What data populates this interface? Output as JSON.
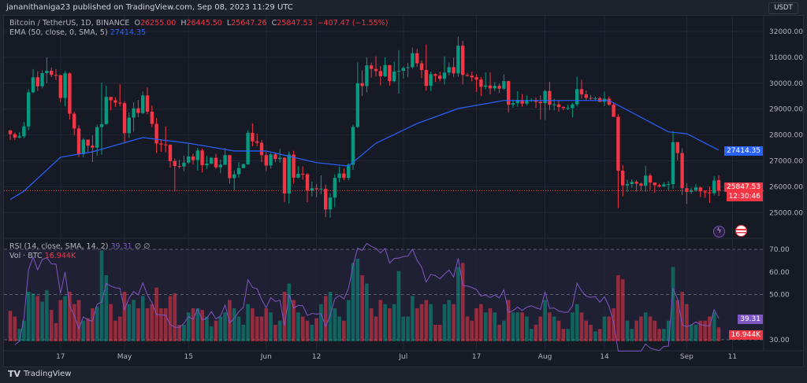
{
  "published": "jananithaniga23 published on TradingView.com, Sep 08, 2023 11:29 UTC",
  "legend": {
    "symbol": "Bitcoin / TetherUS, 1D, BINANCE",
    "o_label": "O",
    "o": "26255.00",
    "h_label": "H",
    "h": "26445.50",
    "l_label": "L",
    "l": "25647.26",
    "c_label": "C",
    "c": "25847.53",
    "change": "−407.47 (−1.55%)",
    "ema_label": "EMA (50, close, 0, SMA, 5)",
    "ema_value": "27414.35",
    "rsi_label": "RSI (14, close, SMA, 14, 2)",
    "rsi_value": "39.31",
    "rsi_extra": "∅ ∅",
    "vol_label": "Vol · BTC",
    "vol_value": "16.944K"
  },
  "currency_button": "USDT",
  "price_axis": [
    "32000.00",
    "31000.00",
    "30000.00",
    "29000.00",
    "28000.00",
    "27000.00",
    "26000.00",
    "25000.00"
  ],
  "rsi_axis": [
    "70.00",
    "60.00",
    "50.00",
    "30.00"
  ],
  "tags": {
    "ema": "27414.35",
    "last_price": "25847.53",
    "countdown": "12:30:46",
    "rsi": "39.31",
    "volume": "16.944K"
  },
  "footer_logo": "TradingView",
  "icons": [
    "lightning-icon",
    "us-flag-icon"
  ],
  "colors": {
    "up": "#089981",
    "down": "#f23645",
    "ema": "#2962ff",
    "rsi": "#7e57c2",
    "background": "#161a25"
  },
  "chart_data": {
    "type": "candlestick",
    "symbol": "BTCUSDT",
    "interval": "1D",
    "x_start": "2023-04-06",
    "first_open": 28170,
    "ylim": [
      24700,
      32200
    ],
    "grid": true,
    "x_ticks": [
      {
        "label": "17",
        "date": "2023-04-17"
      },
      {
        "label": "May",
        "date": "2023-05-01"
      },
      {
        "label": "15",
        "date": "2023-05-15"
      },
      {
        "label": "Jun",
        "date": "2023-06-01"
      },
      {
        "label": "12",
        "date": "2023-06-12"
      },
      {
        "label": "Jul",
        "date": "2023-07-01"
      },
      {
        "label": "17",
        "date": "2023-07-17"
      },
      {
        "label": "Aug",
        "date": "2023-08-01"
      },
      {
        "label": "14",
        "date": "2023-08-14"
      },
      {
        "label": "Sep",
        "date": "2023-09-01"
      },
      {
        "label": "11",
        "date": "2023-09-11"
      }
    ],
    "close": [
      28030,
      27900,
      27950,
      28330,
      29650,
      30230,
      29880,
      30390,
      30480,
      30320,
      30310,
      29430,
      30380,
      28820,
      28250,
      27260,
      27820,
      27590,
      27510,
      28300,
      28420,
      29470,
      29340,
      29250,
      29230,
      28070,
      28670,
      29030,
      28850,
      29530,
      28900,
      28430,
      27670,
      27630,
      27620,
      26990,
      26800,
      26780,
      26930,
      27170,
      27030,
      27400,
      26830,
      26890,
      27120,
      26750,
      26850,
      27220,
      26330,
      26480,
      26720,
      26870,
      28080,
      27750,
      27700,
      27220,
      26820,
      27250,
      27070,
      27120,
      25740,
      27240,
      26350,
      26500,
      26480,
      25850,
      25940,
      25900,
      25920,
      25120,
      25580,
      26340,
      26510,
      26340,
      26850,
      28310,
      30000,
      29890,
      30690,
      30550,
      30470,
      30270,
      30700,
      30080,
      30450,
      30480,
      30590,
      30620,
      31160,
      30770,
      30510,
      29900,
      30350,
      30290,
      30170,
      30410,
      30620,
      30380,
      31450,
      30320,
      30290,
      30230,
      30140,
      29860,
      29910,
      29800,
      29900,
      29790,
      30080,
      29170,
      29230,
      29350,
      29210,
      29310,
      29350,
      29280,
      29230,
      29700,
      29170,
      29180,
      29080,
      29040,
      29040,
      29180,
      29770,
      29570,
      29430,
      29400,
      29420,
      29280,
      29400,
      29170,
      28700,
      26620,
      26050,
      26100,
      26190,
      26120,
      26040,
      26430,
      26160,
      26060,
      26010,
      26090,
      26100,
      27720,
      27300,
      25940,
      25800,
      25870,
      25970,
      25820,
      25780,
      25750,
      26240,
      25847.53
    ],
    "high": [
      28200,
      28100,
      28100,
      28500,
      29770,
      30550,
      30470,
      30500,
      31000,
      30600,
      30550,
      30320,
      30470,
      30410,
      28890,
      28370,
      27880,
      27820,
      27980,
      28400,
      30020,
      29900,
      29470,
      29460,
      29960,
      29300,
      28880,
      29260,
      29350,
      29680,
      29840,
      29140,
      28650,
      27830,
      28330,
      27630,
      27100,
      27040,
      27200,
      27650,
      27280,
      27500,
      27480,
      27190,
      27150,
      27270,
      27050,
      27500,
      27230,
      26630,
      26950,
      26900,
      28180,
      28450,
      28050,
      27800,
      27350,
      27300,
      27330,
      27460,
      27140,
      27360,
      27390,
      26800,
      26790,
      26530,
      26200,
      26100,
      26440,
      26080,
      25750,
      26480,
      26780,
      26700,
      26900,
      28400,
      30800,
      30500,
      31000,
      30800,
      31040,
      30660,
      31000,
      30710,
      30840,
      31280,
      30650,
      30790,
      31380,
      31330,
      30880,
      31500,
      30450,
      30380,
      30440,
      31040,
      30800,
      30990,
      31800,
      31640,
      30400,
      30450,
      30340,
      30240,
      30420,
      30420,
      30050,
      29990,
      30340,
      30100,
      29370,
      29690,
      29580,
      29530,
      29420,
      29450,
      29530,
      29740,
      30050,
      29400,
      29320,
      29100,
      29170,
      29250,
      30250,
      30130,
      29720,
      29550,
      29480,
      29480,
      29680,
      29490,
      29230,
      28800,
      26840,
      26270,
      26290,
      26260,
      26150,
      26810,
      26510,
      26130,
      26110,
      26170,
      26220,
      28140,
      27580,
      27490,
      26130,
      25970,
      26100,
      26000,
      25860,
      26000,
      26420,
      26445.5
    ],
    "low": [
      27800,
      27800,
      27870,
      27880,
      28180,
      29610,
      29700,
      29800,
      30000,
      30240,
      30120,
      29260,
      29100,
      28600,
      27990,
      27150,
      27140,
      27350,
      26950,
      27200,
      27240,
      28390,
      28950,
      29080,
      29100,
      27680,
      27880,
      28120,
      28690,
      28820,
      28800,
      28300,
      27300,
      27350,
      27330,
      26740,
      25810,
      26700,
      26600,
      26870,
      26860,
      26620,
      26550,
      26690,
      26880,
      26690,
      26520,
      26830,
      26120,
      25870,
      26350,
      26720,
      26840,
      27560,
      27560,
      26950,
      26600,
      26700,
      26950,
      26930,
      25400,
      25350,
      26120,
      26320,
      26270,
      25400,
      25620,
      25600,
      25710,
      24820,
      24800,
      25200,
      26170,
      26260,
      26250,
      26650,
      28270,
      29500,
      29650,
      30220,
      30260,
      29920,
      30240,
      29900,
      30040,
      29600,
      30180,
      30230,
      30560,
      30630,
      30200,
      29710,
      29700,
      30050,
      30070,
      29950,
      30300,
      30230,
      30250,
      29950,
      30250,
      30070,
      29660,
      29500,
      29770,
      29570,
      29700,
      29620,
      29740,
      28860,
      29050,
      29090,
      29090,
      29150,
      29270,
      29050,
      28600,
      28580,
      28960,
      28950,
      28900,
      28960,
      28960,
      28680,
      29100,
      29400,
      29320,
      29350,
      29350,
      29270,
      29120,
      29130,
      28700,
      25170,
      25620,
      25800,
      25950,
      25810,
      25860,
      25800,
      25870,
      25770,
      25970,
      26000,
      25860,
      25910,
      27020,
      25680,
      25330,
      25720,
      25800,
      25600,
      25570,
      25370,
      25660,
      25647.26
    ],
    "volume_k": [
      37,
      30,
      15,
      25,
      60,
      58,
      55,
      48,
      62,
      38,
      22,
      50,
      55,
      60,
      45,
      50,
      25,
      28,
      40,
      42,
      110,
      80,
      45,
      25,
      30,
      60,
      45,
      50,
      40,
      55,
      40,
      45,
      65,
      40,
      40,
      55,
      58,
      20,
      20,
      35,
      40,
      40,
      38,
      30,
      18,
      25,
      30,
      35,
      50,
      40,
      30,
      20,
      45,
      40,
      30,
      30,
      40,
      35,
      20,
      25,
      60,
      70,
      50,
      35,
      30,
      25,
      20,
      28,
      45,
      55,
      60,
      40,
      30,
      25,
      50,
      95,
      100,
      80,
      70,
      40,
      30,
      50,
      45,
      40,
      45,
      85,
      30,
      30,
      55,
      40,
      45,
      50,
      45,
      20,
      20,
      45,
      50,
      45,
      90,
      95,
      30,
      25,
      40,
      45,
      35,
      40,
      35,
      20,
      25,
      50,
      35,
      35,
      35,
      30,
      15,
      20,
      30,
      50,
      35,
      30,
      25,
      15,
      15,
      35,
      45,
      35,
      25,
      20,
      12,
      15,
      30,
      30,
      40,
      80,
      75,
      25,
      15,
      25,
      30,
      35,
      30,
      25,
      15,
      15,
      25,
      90,
      50,
      60,
      45,
      20,
      20,
      25,
      25,
      30,
      35,
      16.944
    ],
    "ema_points": [
      [
        "2023-04-06",
        25500
      ],
      [
        "2023-04-09",
        25830
      ],
      [
        "2023-04-17",
        27140
      ],
      [
        "2023-04-24",
        27350
      ],
      [
        "2023-05-05",
        27900
      ],
      [
        "2023-05-15",
        27680
      ],
      [
        "2023-05-25",
        27380
      ],
      [
        "2023-06-01",
        27380
      ],
      [
        "2023-06-12",
        26930
      ],
      [
        "2023-06-19",
        26800
      ],
      [
        "2023-06-25",
        27680
      ],
      [
        "2023-07-04",
        28440
      ],
      [
        "2023-07-13",
        29020
      ],
      [
        "2023-07-23",
        29330
      ],
      [
        "2023-08-02",
        29330
      ],
      [
        "2023-08-15",
        29330
      ],
      [
        "2023-08-20",
        28870
      ],
      [
        "2023-08-28",
        28120
      ],
      [
        "2023-09-01",
        28050
      ],
      [
        "2023-09-08",
        27414.35
      ]
    ],
    "rsi_levels": [
      70,
      50,
      30
    ]
  }
}
